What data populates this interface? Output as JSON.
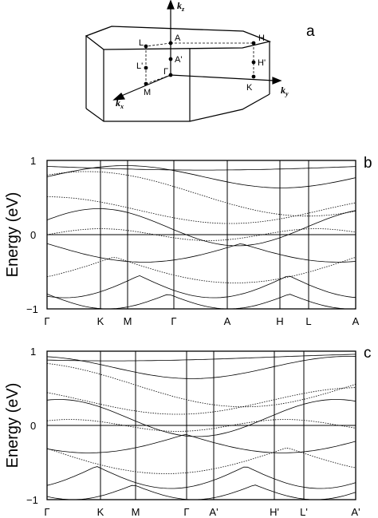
{
  "diagram": {
    "panel_label": "a",
    "points": [
      "A",
      "L",
      "H",
      "A'",
      "L'",
      "H'",
      "Γ",
      "M",
      "K"
    ],
    "axes": {
      "kz": {
        "base": "k",
        "sub": "z"
      },
      "kx": {
        "base": "k",
        "sub": "x"
      },
      "ky": {
        "base": "k",
        "sub": "y"
      }
    }
  },
  "chart_data": [
    {
      "type": "line",
      "panel_label": "b",
      "ylabel": "Energy (eV)",
      "ylim": [
        -1,
        1
      ],
      "yticks": [
        "1",
        "0",
        "−1"
      ],
      "k_path": [
        "Γ",
        "K",
        "M",
        "Γ",
        "A",
        "H",
        "L",
        "A"
      ],
      "fermi_level": 0,
      "grid": false
    },
    {
      "type": "line",
      "panel_label": "c",
      "ylabel": "Energy (eV)",
      "ylim": [
        -1,
        1
      ],
      "yticks": [
        "1",
        "0",
        "−1"
      ],
      "k_path": [
        "Γ",
        "K",
        "M",
        "Γ",
        "A'",
        "H'",
        "L'",
        "A'"
      ],
      "fermi_level": 0,
      "grid": false
    }
  ]
}
